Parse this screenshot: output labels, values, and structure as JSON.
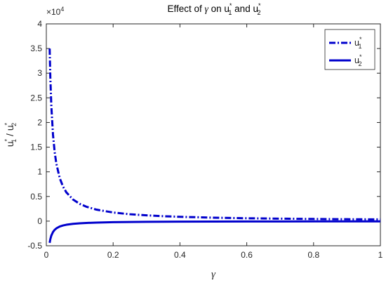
{
  "chart_data": {
    "type": "line",
    "title": {
      "prefix": "Effect of ",
      "symbol": "γ",
      "middle": " on u",
      "sup1": "*",
      "sub1": "1",
      "conj": " and u",
      "sup2": "*",
      "sub2": "2"
    },
    "xlabel": "γ",
    "ylabel": {
      "base1": "u",
      "sup1": "*",
      "sub1": "1",
      "sep": " / u",
      "sup2": "*",
      "sub2": "2"
    },
    "exponent": {
      "base": "×10",
      "power": "4"
    },
    "xlim": [
      0,
      1
    ],
    "ylim": [
      -0.5,
      4
    ],
    "xticks": [
      {
        "v": 0,
        "label": "0"
      },
      {
        "v": 0.2,
        "label": "0.2"
      },
      {
        "v": 0.4,
        "label": "0.4"
      },
      {
        "v": 0.6,
        "label": "0.6"
      },
      {
        "v": 0.8,
        "label": "0.8"
      },
      {
        "v": 1,
        "label": "1"
      }
    ],
    "yticks": [
      {
        "v": -0.5,
        "label": "-0.5"
      },
      {
        "v": 0,
        "label": "0"
      },
      {
        "v": 0.5,
        "label": "0.5"
      },
      {
        "v": 1,
        "label": "1"
      },
      {
        "v": 1.5,
        "label": "1.5"
      },
      {
        "v": 2,
        "label": "2"
      },
      {
        "v": 2.5,
        "label": "2.5"
      },
      {
        "v": 3,
        "label": "3"
      },
      {
        "v": 3.5,
        "label": "3.5"
      },
      {
        "v": 4,
        "label": "4"
      }
    ],
    "grid": false,
    "legend_position": "top-right",
    "series": [
      {
        "name": "u1*",
        "legend": {
          "base": "u",
          "sup": "*",
          "sub": "1"
        },
        "style": "dash-dot",
        "color": "#0000CC",
        "x": [
          0.01,
          0.012,
          0.015,
          0.02,
          0.025,
          0.03,
          0.04,
          0.05,
          0.06,
          0.08,
          0.1,
          0.12,
          0.15,
          0.2,
          0.25,
          0.3,
          0.35,
          0.4,
          0.5,
          0.6,
          0.7,
          0.8,
          0.9,
          1.0
        ],
        "y": [
          3.5,
          2.917,
          2.333,
          1.75,
          1.4,
          1.167,
          0.875,
          0.7,
          0.583,
          0.4375,
          0.35,
          0.292,
          0.233,
          0.175,
          0.14,
          0.117,
          0.1,
          0.0875,
          0.07,
          0.0583,
          0.05,
          0.0438,
          0.0389,
          0.035
        ]
      },
      {
        "name": "u2*",
        "legend": {
          "base": "u",
          "sup": "*",
          "sub": "2"
        },
        "style": "solid",
        "color": "#0000CC",
        "x": [
          0.01,
          0.012,
          0.015,
          0.02,
          0.025,
          0.03,
          0.04,
          0.05,
          0.06,
          0.08,
          0.1,
          0.12,
          0.15,
          0.2,
          0.25,
          0.3,
          0.35,
          0.4,
          0.5,
          0.6,
          0.7,
          0.8,
          0.9,
          1.0
        ],
        "y": [
          -0.44,
          -0.367,
          -0.293,
          -0.22,
          -0.176,
          -0.147,
          -0.11,
          -0.088,
          -0.0733,
          -0.055,
          -0.044,
          -0.0367,
          -0.0293,
          -0.022,
          -0.0176,
          -0.0147,
          -0.0126,
          -0.011,
          -0.0088,
          -0.0073,
          -0.0063,
          -0.0055,
          -0.0049,
          -0.0044
        ]
      }
    ]
  }
}
